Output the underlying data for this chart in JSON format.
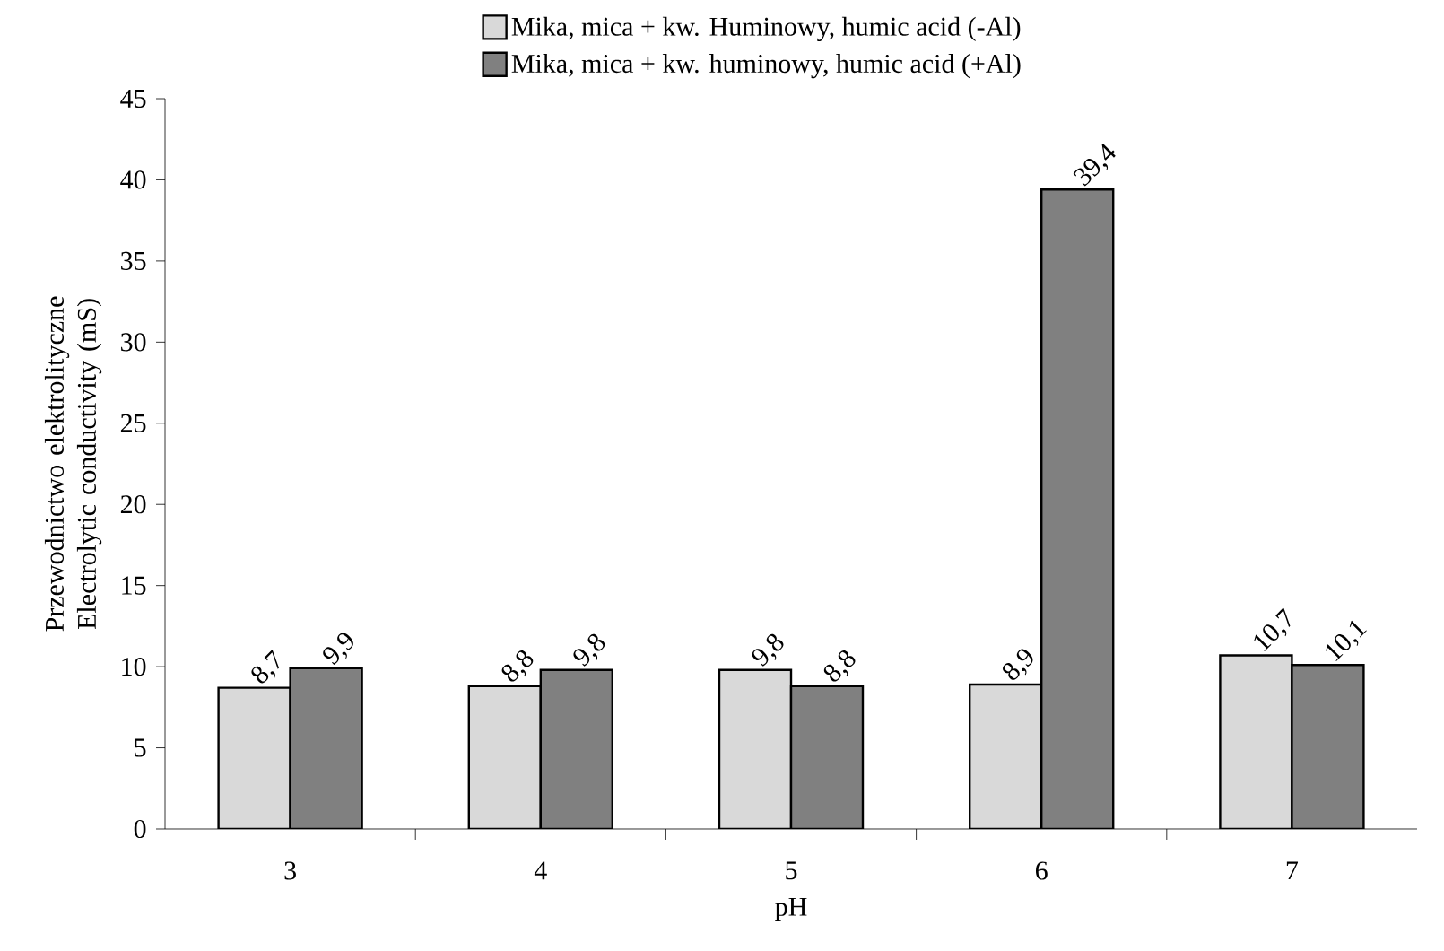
{
  "chart_data": {
    "type": "bar",
    "xlabel": "pH",
    "ylabel": "Przewodnictwo elektrolityczne Electrolytic conductivity (mS)",
    "categories": [
      "3",
      "4",
      "5",
      "6",
      "7"
    ],
    "series": [
      {
        "name": "Mika, mica + kw. Huminowy, humic acid (-Al)",
        "color": "#d9d9d9",
        "values": [
          8.7,
          8.8,
          9.8,
          8.9,
          10.7
        ],
        "value_labels": [
          "8,7",
          "8,8",
          "9,8",
          "8,9",
          "10,7"
        ]
      },
      {
        "name": "Mika, mica + kw. huminowy, humic acid (+Al)",
        "color": "#808080",
        "values": [
          9.9,
          9.8,
          8.8,
          39.4,
          10.1
        ],
        "value_labels": [
          "9,9",
          "9,8",
          "8,8",
          "39,4",
          "10,1"
        ]
      }
    ],
    "ylim": [
      0,
      45
    ],
    "yticks": [
      0,
      5,
      10,
      15,
      20,
      25,
      30,
      35,
      40,
      45
    ],
    "legend": "top",
    "grid": false
  }
}
